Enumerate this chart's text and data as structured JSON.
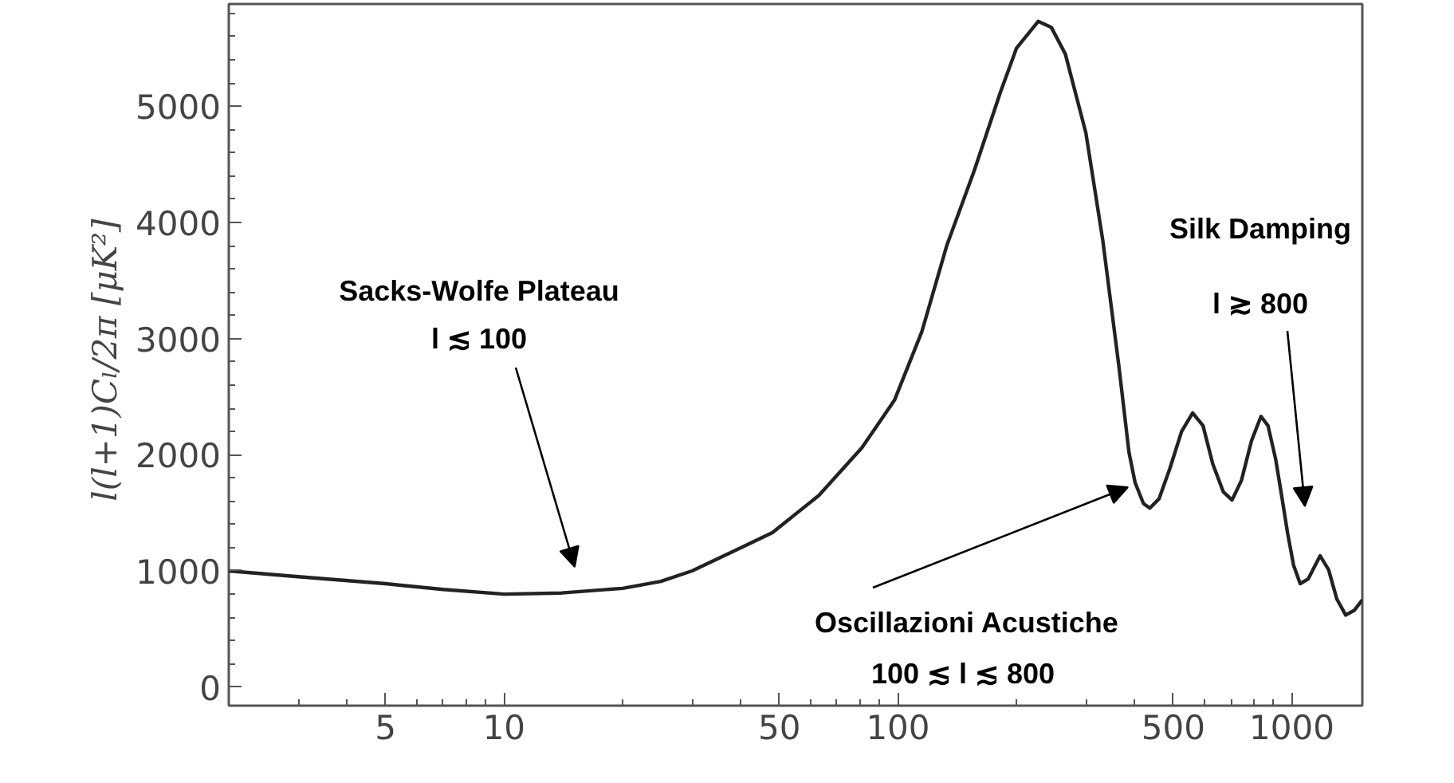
{
  "chart_data": {
    "type": "line",
    "ylabel": "l(l+1)Cₗ/2π  [μK²]",
    "log": "x",
    "xlim": [
      2,
      1510
    ],
    "xticks": [
      5,
      10,
      50,
      100,
      500,
      1000
    ],
    "ylim": [
      -160,
      5880
    ],
    "yticks": [
      0,
      1000,
      2000,
      3000,
      4000,
      5000
    ],
    "grid": false,
    "marker": "none",
    "line_style": "solid",
    "series": [
      {
        "color": "#222222",
        "x": [
          2,
          3,
          5,
          7,
          10,
          14,
          20,
          25,
          30,
          40,
          48,
          63,
          81,
          98,
          115,
          133,
          156,
          182,
          200,
          227,
          245,
          266,
          300,
          331,
          363,
          386,
          400,
          420,
          436,
          460,
          490,
          525,
          560,
          595,
          630,
          670,
          705,
          745,
          790,
          835,
          870,
          910,
          945,
          975,
          1010,
          1050,
          1100,
          1180,
          1240,
          1300,
          1370,
          1440,
          1510
        ],
        "values": [
          1000,
          950,
          890,
          840,
          800,
          810,
          850,
          910,
          1000,
          1200,
          1330,
          1650,
          2060,
          2470,
          3060,
          3800,
          4440,
          5120,
          5500,
          5730,
          5680,
          5450,
          4770,
          3850,
          2790,
          2020,
          1760,
          1580,
          1540,
          1620,
          1880,
          2200,
          2360,
          2250,
          1920,
          1680,
          1610,
          1780,
          2120,
          2330,
          2250,
          1960,
          1620,
          1330,
          1050,
          890,
          930,
          1130,
          1010,
          760,
          620,
          660,
          750
        ]
      }
    ],
    "annotations": [
      "Sacks-Wolfe Plateau\nl ≲ 100",
      "Oscillazioni Acustiche\n100 ≲  l ≲ 800",
      "Silk Damping\nl ≳ 800"
    ]
  }
}
